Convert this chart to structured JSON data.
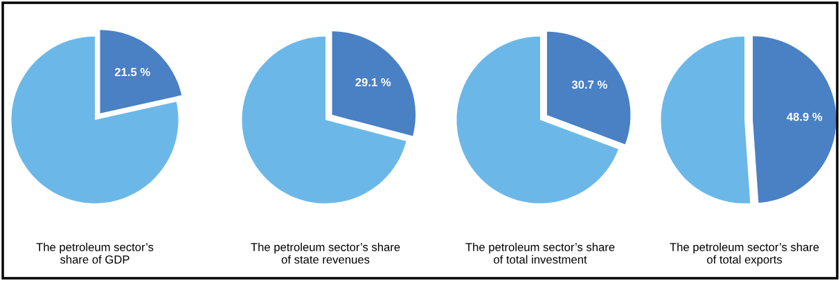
{
  "chart_data": [
    {
      "type": "pie",
      "xlabel": "The petroleum sector’s\nshare of GDP",
      "categories": [
        null,
        null
      ],
      "values": [
        21.5,
        78.5
      ],
      "colors": [
        "#4a80c4",
        "#6bb8e8"
      ],
      "value_labels": [
        "21.5 %",
        null
      ]
    },
    {
      "type": "pie",
      "xlabel": "The petroleum sector’s share\nof state revenues",
      "categories": [
        null,
        null
      ],
      "values": [
        29.1,
        70.9
      ],
      "colors": [
        "#4a80c4",
        "#6bb8e8"
      ],
      "value_labels": [
        "29.1 %",
        null
      ]
    },
    {
      "type": "pie",
      "xlabel": "The petroleum sector’s share\nof total investment",
      "categories": [
        null,
        null
      ],
      "values": [
        30.7,
        69.3
      ],
      "colors": [
        "#4a80c4",
        "#6bb8e8"
      ],
      "value_labels": [
        "30.7 %",
        null
      ]
    },
    {
      "type": "pie",
      "xlabel": "The petroleum sector’s share\nof total exports",
      "categories": [
        null,
        null
      ],
      "values": [
        48.9,
        51.1
      ],
      "colors": [
        "#4a80c4",
        "#6bb8e8"
      ],
      "value_labels": [
        "48.9 %",
        null
      ]
    }
  ]
}
